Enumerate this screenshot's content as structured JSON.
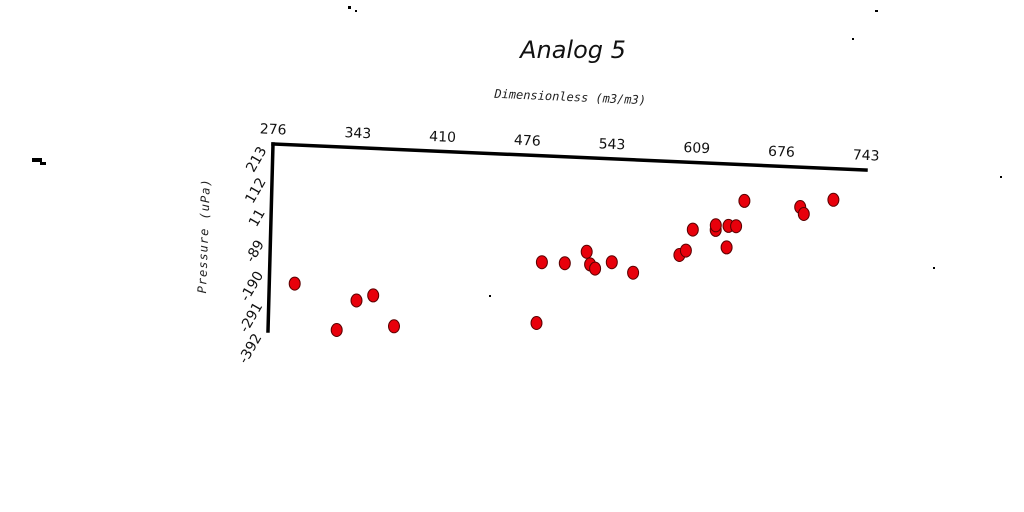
{
  "chart_data": {
    "type": "scatter",
    "title": "Analog 5",
    "xlabel": "Dimensionless (m3/m3)",
    "ylabel": "Pressure (uPa)",
    "x_ticks": [
      "276",
      "343",
      "410",
      "476",
      "543",
      "609",
      "676",
      "743"
    ],
    "y_ticks": [
      "213",
      "112",
      "11",
      "-89",
      "-190",
      "-291",
      "-392"
    ],
    "xlim": [
      276,
      743
    ],
    "ylim": [
      -392,
      213
    ],
    "grid": false,
    "legend": "none",
    "marker_color": "#e8000b",
    "points": [
      {
        "x": 296,
        "y": -235
      },
      {
        "x": 330,
        "y": -379
      },
      {
        "x": 345,
        "y": -281
      },
      {
        "x": 358,
        "y": -262
      },
      {
        "x": 375,
        "y": -359
      },
      {
        "x": 487,
        "y": -328
      },
      {
        "x": 490,
        "y": -131
      },
      {
        "x": 508,
        "y": -131
      },
      {
        "x": 525,
        "y": -91
      },
      {
        "x": 528,
        "y": -131
      },
      {
        "x": 532,
        "y": -144
      },
      {
        "x": 545,
        "y": -121
      },
      {
        "x": 562,
        "y": -152
      },
      {
        "x": 598,
        "y": -88
      },
      {
        "x": 603,
        "y": -73
      },
      {
        "x": 608,
        "y": -4
      },
      {
        "x": 626,
        "y": -2
      },
      {
        "x": 626,
        "y": 13
      },
      {
        "x": 635,
        "y": -57
      },
      {
        "x": 636,
        "y": 13
      },
      {
        "x": 642,
        "y": 13
      },
      {
        "x": 648,
        "y": 96
      },
      {
        "x": 692,
        "y": 84
      },
      {
        "x": 695,
        "y": 62
      },
      {
        "x": 718,
        "y": 112
      }
    ]
  }
}
